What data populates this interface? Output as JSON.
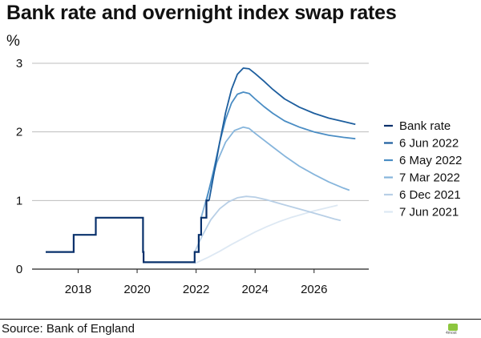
{
  "title": "Bank rate and overnight index swap rates",
  "unit": "%",
  "source": "Source: Bank of England",
  "logo_text": "4most",
  "chart_data": {
    "type": "line",
    "title": "Bank rate and overnight index swap rates",
    "xlabel": "",
    "ylabel": "%",
    "xlim": [
      2016.9,
      2027.8
    ],
    "ylim": [
      0,
      3
    ],
    "x_ticks": [
      2018,
      2020,
      2022,
      2024,
      2026
    ],
    "y_ticks": [
      0,
      1,
      2,
      3
    ],
    "grid": "horizontal",
    "legend_position": "right",
    "series": [
      {
        "name": "Bank rate",
        "color": "#08306b",
        "step": true,
        "points": [
          [
            2016.9,
            0.25
          ],
          [
            2017.85,
            0.25
          ],
          [
            2017.85,
            0.5
          ],
          [
            2018.6,
            0.5
          ],
          [
            2018.6,
            0.75
          ],
          [
            2020.2,
            0.75
          ],
          [
            2020.2,
            0.25
          ],
          [
            2020.22,
            0.25
          ],
          [
            2020.22,
            0.1
          ],
          [
            2021.95,
            0.1
          ],
          [
            2021.95,
            0.25
          ],
          [
            2022.09,
            0.25
          ],
          [
            2022.09,
            0.5
          ],
          [
            2022.17,
            0.5
          ],
          [
            2022.17,
            0.75
          ],
          [
            2022.35,
            0.75
          ],
          [
            2022.35,
            1.0
          ],
          [
            2022.44,
            1.0
          ]
        ]
      },
      {
        "name": "6 Jun 2022",
        "color": "#1d5e9e",
        "points": [
          [
            2022.44,
            1.0
          ],
          [
            2022.6,
            1.38
          ],
          [
            2022.8,
            1.85
          ],
          [
            2023.0,
            2.28
          ],
          [
            2023.2,
            2.62
          ],
          [
            2023.4,
            2.84
          ],
          [
            2023.6,
            2.93
          ],
          [
            2023.8,
            2.92
          ],
          [
            2024.0,
            2.85
          ],
          [
            2024.3,
            2.74
          ],
          [
            2024.6,
            2.62
          ],
          [
            2025.0,
            2.48
          ],
          [
            2025.5,
            2.36
          ],
          [
            2026.0,
            2.27
          ],
          [
            2026.5,
            2.2
          ],
          [
            2027.0,
            2.15
          ],
          [
            2027.4,
            2.11
          ]
        ]
      },
      {
        "name": "6 May 2022",
        "color": "#4a8dc4",
        "points": [
          [
            2022.35,
            1.0
          ],
          [
            2022.6,
            1.45
          ],
          [
            2022.8,
            1.85
          ],
          [
            2023.0,
            2.18
          ],
          [
            2023.2,
            2.42
          ],
          [
            2023.4,
            2.55
          ],
          [
            2023.6,
            2.58
          ],
          [
            2023.8,
            2.56
          ],
          [
            2024.0,
            2.48
          ],
          [
            2024.3,
            2.37
          ],
          [
            2024.6,
            2.27
          ],
          [
            2025.0,
            2.16
          ],
          [
            2025.5,
            2.07
          ],
          [
            2026.0,
            2.0
          ],
          [
            2026.5,
            1.95
          ],
          [
            2027.0,
            1.92
          ],
          [
            2027.4,
            1.9
          ]
        ]
      },
      {
        "name": "7 Mar 2022",
        "color": "#86b5dc",
        "points": [
          [
            2022.17,
            0.75
          ],
          [
            2022.4,
            1.1
          ],
          [
            2022.7,
            1.55
          ],
          [
            2023.0,
            1.85
          ],
          [
            2023.3,
            2.02
          ],
          [
            2023.6,
            2.07
          ],
          [
            2023.8,
            2.05
          ],
          [
            2024.0,
            1.98
          ],
          [
            2024.3,
            1.88
          ],
          [
            2024.6,
            1.78
          ],
          [
            2025.0,
            1.65
          ],
          [
            2025.5,
            1.5
          ],
          [
            2026.0,
            1.38
          ],
          [
            2026.5,
            1.27
          ],
          [
            2027.0,
            1.18
          ],
          [
            2027.2,
            1.15
          ]
        ]
      },
      {
        "name": "6 Dec 2021",
        "color": "#b8cfe6",
        "points": [
          [
            2021.95,
            0.25
          ],
          [
            2022.2,
            0.48
          ],
          [
            2022.5,
            0.72
          ],
          [
            2022.8,
            0.88
          ],
          [
            2023.1,
            0.98
          ],
          [
            2023.4,
            1.04
          ],
          [
            2023.7,
            1.06
          ],
          [
            2024.0,
            1.05
          ],
          [
            2024.4,
            1.01
          ],
          [
            2024.8,
            0.96
          ],
          [
            2025.3,
            0.9
          ],
          [
            2025.8,
            0.84
          ],
          [
            2026.3,
            0.78
          ],
          [
            2026.7,
            0.73
          ],
          [
            2026.9,
            0.71
          ]
        ]
      },
      {
        "name": "7 Jun 2021",
        "color": "#dde8f3",
        "points": [
          [
            2021.95,
            0.08
          ],
          [
            2022.4,
            0.17
          ],
          [
            2022.8,
            0.26
          ],
          [
            2023.2,
            0.36
          ],
          [
            2023.6,
            0.45
          ],
          [
            2024.0,
            0.54
          ],
          [
            2024.4,
            0.62
          ],
          [
            2024.8,
            0.69
          ],
          [
            2025.2,
            0.75
          ],
          [
            2025.6,
            0.8
          ],
          [
            2026.0,
            0.85
          ],
          [
            2026.4,
            0.89
          ],
          [
            2026.8,
            0.93
          ]
        ]
      }
    ]
  }
}
